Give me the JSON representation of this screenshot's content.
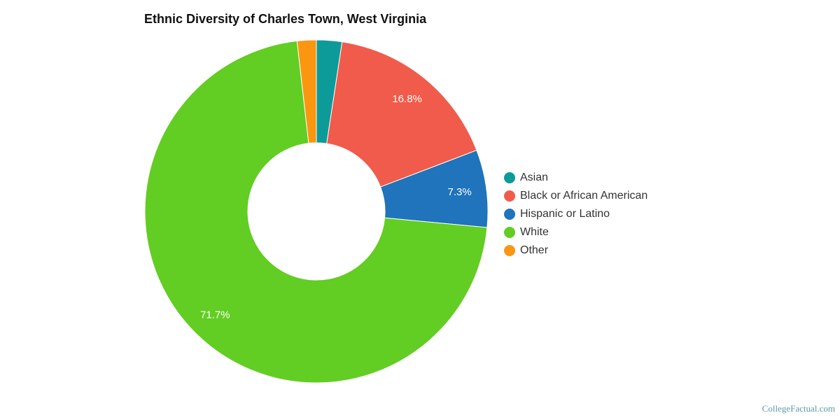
{
  "chart_data": {
    "type": "pie",
    "subtype": "donut",
    "title": "Ethnic Diversity of Charles Town, West Virginia",
    "categories": [
      "Asian",
      "Black or African American",
      "Hispanic or Latino",
      "White",
      "Other"
    ],
    "values": [
      2.4,
      16.8,
      7.3,
      71.7,
      1.8
    ],
    "unit": "%",
    "colors": [
      "#0d9b99",
      "#f05b4b",
      "#1f74bb",
      "#62cd22",
      "#fb9611"
    ],
    "data_labels": [
      "",
      "16.8%",
      "7.3%",
      "71.7%",
      ""
    ],
    "legend_position": "right"
  },
  "header": {
    "title": "Ethnic Diversity of Charles Town, West Virginia"
  },
  "legend": {
    "items": [
      {
        "label": "Asian",
        "color": "#0d9b99"
      },
      {
        "label": "Black or African American",
        "color": "#f05b4b"
      },
      {
        "label": "Hispanic or Latino",
        "color": "#1f74bb"
      },
      {
        "label": "White",
        "color": "#62cd22"
      },
      {
        "label": "Other",
        "color": "#fb9611"
      }
    ]
  },
  "footer": {
    "credit": "CollegeFactual.com"
  }
}
